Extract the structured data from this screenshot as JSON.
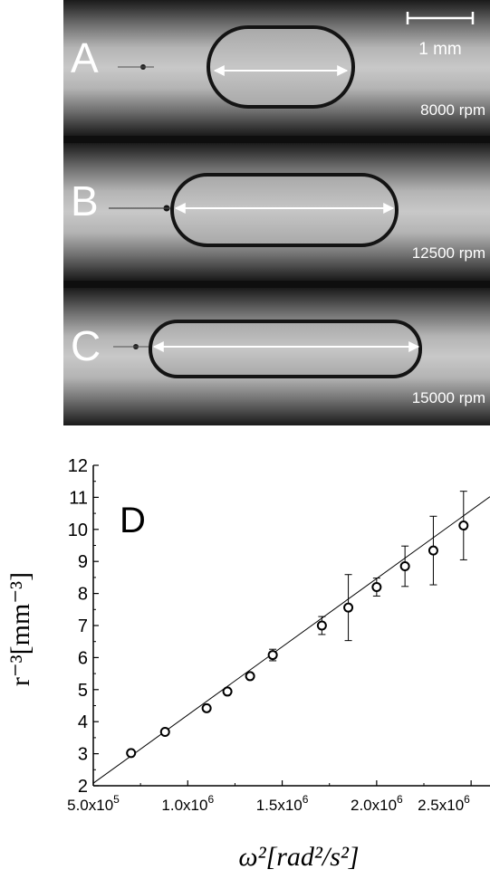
{
  "photo": {
    "scale_bar_label": "1 mm",
    "panels": [
      {
        "letter": "A",
        "speed": "8000 rpm"
      },
      {
        "letter": "B",
        "speed": "12500 rpm"
      },
      {
        "letter": "C",
        "speed": "15000 rpm"
      }
    ]
  },
  "chart_data": {
    "type": "scatter",
    "panel_label": "D",
    "xlabel": "ω²[rad²/s²]",
    "ylabel": "r⁻³[mm⁻³]",
    "xlim": [
      500000,
      2600000
    ],
    "ylim": [
      2,
      12
    ],
    "x_ticks": [
      500000,
      1000000,
      1500000,
      2000000,
      2500000
    ],
    "x_tick_labels": [
      "5.0x10^5",
      "1.0x10^6",
      "1.5x10^6",
      "2.0x10^6",
      "2.5x10^6"
    ],
    "y_ticks": [
      2,
      3,
      4,
      5,
      6,
      7,
      8,
      9,
      10,
      11,
      12
    ],
    "y_tick_labels": [
      "2",
      "3",
      "4",
      "5",
      "6",
      "7",
      "8",
      "9",
      "10",
      "11",
      "12"
    ],
    "points": [
      {
        "x": 700000,
        "y": 3.02,
        "err": 0.05
      },
      {
        "x": 880000,
        "y": 3.68,
        "err": 0.05
      },
      {
        "x": 1100000,
        "y": 4.42,
        "err": 0.1
      },
      {
        "x": 1210000,
        "y": 4.94,
        "err": 0.08
      },
      {
        "x": 1330000,
        "y": 5.42,
        "err": 0.1
      },
      {
        "x": 1450000,
        "y": 6.08,
        "err": 0.18
      },
      {
        "x": 1710000,
        "y": 7.0,
        "err": 0.28
      },
      {
        "x": 1850000,
        "y": 7.56,
        "err": 1.03
      },
      {
        "x": 2000000,
        "y": 8.2,
        "err": 0.28
      },
      {
        "x": 2150000,
        "y": 8.85,
        "err": 0.63
      },
      {
        "x": 2300000,
        "y": 9.34,
        "err": 1.07
      },
      {
        "x": 2460000,
        "y": 10.12,
        "err": 1.07
      }
    ],
    "fit_line": {
      "x": [
        500000,
        2600000
      ],
      "y": [
        2.08,
        11.02
      ]
    },
    "grid": false
  }
}
